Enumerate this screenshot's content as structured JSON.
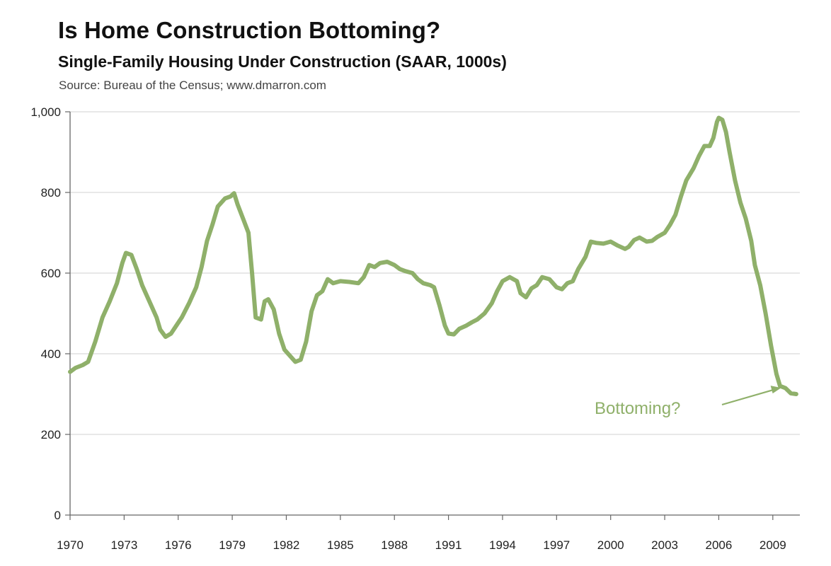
{
  "title": "Is Home Construction Bottoming?",
  "subtitle": "Single-Family Housing Under Construction (SAAR, 1000s)",
  "source": "Source: Bureau of the Census; www.dmarron.com",
  "colors": {
    "line": "#8fb06a",
    "grid": "#d9d9d9",
    "axis": "#666666",
    "annotation": "#8fb06a"
  },
  "chart_data": {
    "type": "line",
    "title": "Is Home Construction Bottoming?",
    "subtitle": "Single-Family Housing Under Construction (SAAR, 1000s)",
    "xlabel": "",
    "ylabel": "",
    "xlim": [
      1970,
      2010.5
    ],
    "ylim": [
      0,
      1000
    ],
    "grid": true,
    "legend": "none",
    "x_ticks": [
      1970,
      1973,
      1976,
      1979,
      1982,
      1985,
      1988,
      1991,
      1994,
      1997,
      2000,
      2003,
      2006,
      2009
    ],
    "x_tick_labels": [
      "1970",
      "1973",
      "1976",
      "1979",
      "1982",
      "1985",
      "1988",
      "1991",
      "1994",
      "1997",
      "2000",
      "2003",
      "2006",
      "2009"
    ],
    "y_ticks": [
      0,
      200,
      400,
      600,
      800,
      1000
    ],
    "y_tick_labels": [
      "0",
      "200",
      "400",
      "600",
      "800",
      "1,000"
    ],
    "series": [
      {
        "points": [
          [
            1970.0,
            355
          ],
          [
            1970.3,
            365
          ],
          [
            1970.7,
            372
          ],
          [
            1971.0,
            380
          ],
          [
            1971.4,
            430
          ],
          [
            1971.8,
            490
          ],
          [
            1972.2,
            530
          ],
          [
            1972.6,
            575
          ],
          [
            1972.9,
            625
          ],
          [
            1973.1,
            650
          ],
          [
            1973.4,
            645
          ],
          [
            1973.7,
            610
          ],
          [
            1974.0,
            570
          ],
          [
            1974.4,
            530
          ],
          [
            1974.8,
            490
          ],
          [
            1975.0,
            460
          ],
          [
            1975.3,
            442
          ],
          [
            1975.6,
            450
          ],
          [
            1975.9,
            470
          ],
          [
            1976.2,
            490
          ],
          [
            1976.6,
            525
          ],
          [
            1977.0,
            565
          ],
          [
            1977.3,
            615
          ],
          [
            1977.6,
            680
          ],
          [
            1977.9,
            720
          ],
          [
            1978.2,
            765
          ],
          [
            1978.6,
            785
          ],
          [
            1978.9,
            790
          ],
          [
            1979.1,
            798
          ],
          [
            1979.3,
            770
          ],
          [
            1979.6,
            735
          ],
          [
            1979.9,
            700
          ],
          [
            1980.1,
            600
          ],
          [
            1980.3,
            490
          ],
          [
            1980.6,
            485
          ],
          [
            1980.8,
            530
          ],
          [
            1981.0,
            535
          ],
          [
            1981.3,
            510
          ],
          [
            1981.6,
            450
          ],
          [
            1981.9,
            410
          ],
          [
            1982.2,
            395
          ],
          [
            1982.5,
            380
          ],
          [
            1982.8,
            385
          ],
          [
            1983.1,
            430
          ],
          [
            1983.4,
            505
          ],
          [
            1983.7,
            545
          ],
          [
            1984.0,
            555
          ],
          [
            1984.3,
            585
          ],
          [
            1984.6,
            575
          ],
          [
            1985.0,
            580
          ],
          [
            1985.5,
            578
          ],
          [
            1986.0,
            575
          ],
          [
            1986.3,
            590
          ],
          [
            1986.6,
            620
          ],
          [
            1986.9,
            615
          ],
          [
            1987.2,
            625
          ],
          [
            1987.6,
            628
          ],
          [
            1988.0,
            620
          ],
          [
            1988.3,
            610
          ],
          [
            1988.6,
            605
          ],
          [
            1989.0,
            600
          ],
          [
            1989.3,
            585
          ],
          [
            1989.6,
            575
          ],
          [
            1990.0,
            570
          ],
          [
            1990.2,
            565
          ],
          [
            1990.5,
            520
          ],
          [
            1990.8,
            470
          ],
          [
            1991.0,
            450
          ],
          [
            1991.3,
            448
          ],
          [
            1991.6,
            462
          ],
          [
            1992.0,
            470
          ],
          [
            1992.3,
            478
          ],
          [
            1992.6,
            485
          ],
          [
            1993.0,
            500
          ],
          [
            1993.4,
            525
          ],
          [
            1993.7,
            555
          ],
          [
            1994.0,
            580
          ],
          [
            1994.4,
            590
          ],
          [
            1994.8,
            580
          ],
          [
            1995.0,
            550
          ],
          [
            1995.3,
            540
          ],
          [
            1995.6,
            562
          ],
          [
            1995.9,
            570
          ],
          [
            1996.2,
            590
          ],
          [
            1996.6,
            585
          ],
          [
            1997.0,
            565
          ],
          [
            1997.3,
            560
          ],
          [
            1997.6,
            575
          ],
          [
            1997.9,
            580
          ],
          [
            1998.2,
            610
          ],
          [
            1998.6,
            640
          ],
          [
            1998.9,
            678
          ],
          [
            1999.2,
            675
          ],
          [
            1999.6,
            673
          ],
          [
            2000.0,
            678
          ],
          [
            2000.4,
            668
          ],
          [
            2000.8,
            660
          ],
          [
            2001.0,
            665
          ],
          [
            2001.3,
            682
          ],
          [
            2001.6,
            688
          ],
          [
            2002.0,
            678
          ],
          [
            2002.3,
            680
          ],
          [
            2002.6,
            690
          ],
          [
            2003.0,
            700
          ],
          [
            2003.3,
            720
          ],
          [
            2003.6,
            745
          ],
          [
            2003.9,
            790
          ],
          [
            2004.2,
            830
          ],
          [
            2004.6,
            860
          ],
          [
            2004.9,
            890
          ],
          [
            2005.2,
            915
          ],
          [
            2005.5,
            915
          ],
          [
            2005.7,
            935
          ],
          [
            2005.9,
            975
          ],
          [
            2006.0,
            985
          ],
          [
            2006.2,
            980
          ],
          [
            2006.4,
            950
          ],
          [
            2006.6,
            900
          ],
          [
            2006.9,
            830
          ],
          [
            2007.2,
            775
          ],
          [
            2007.5,
            735
          ],
          [
            2007.8,
            680
          ],
          [
            2008.0,
            620
          ],
          [
            2008.3,
            570
          ],
          [
            2008.6,
            500
          ],
          [
            2008.9,
            420
          ],
          [
            2009.2,
            350
          ],
          [
            2009.4,
            320
          ],
          [
            2009.7,
            315
          ],
          [
            2010.0,
            302
          ],
          [
            2010.3,
            300
          ]
        ]
      }
    ],
    "annotations": [
      {
        "text": "Bottoming?",
        "arrow_to": [
          2009.7,
          312
        ]
      }
    ]
  }
}
